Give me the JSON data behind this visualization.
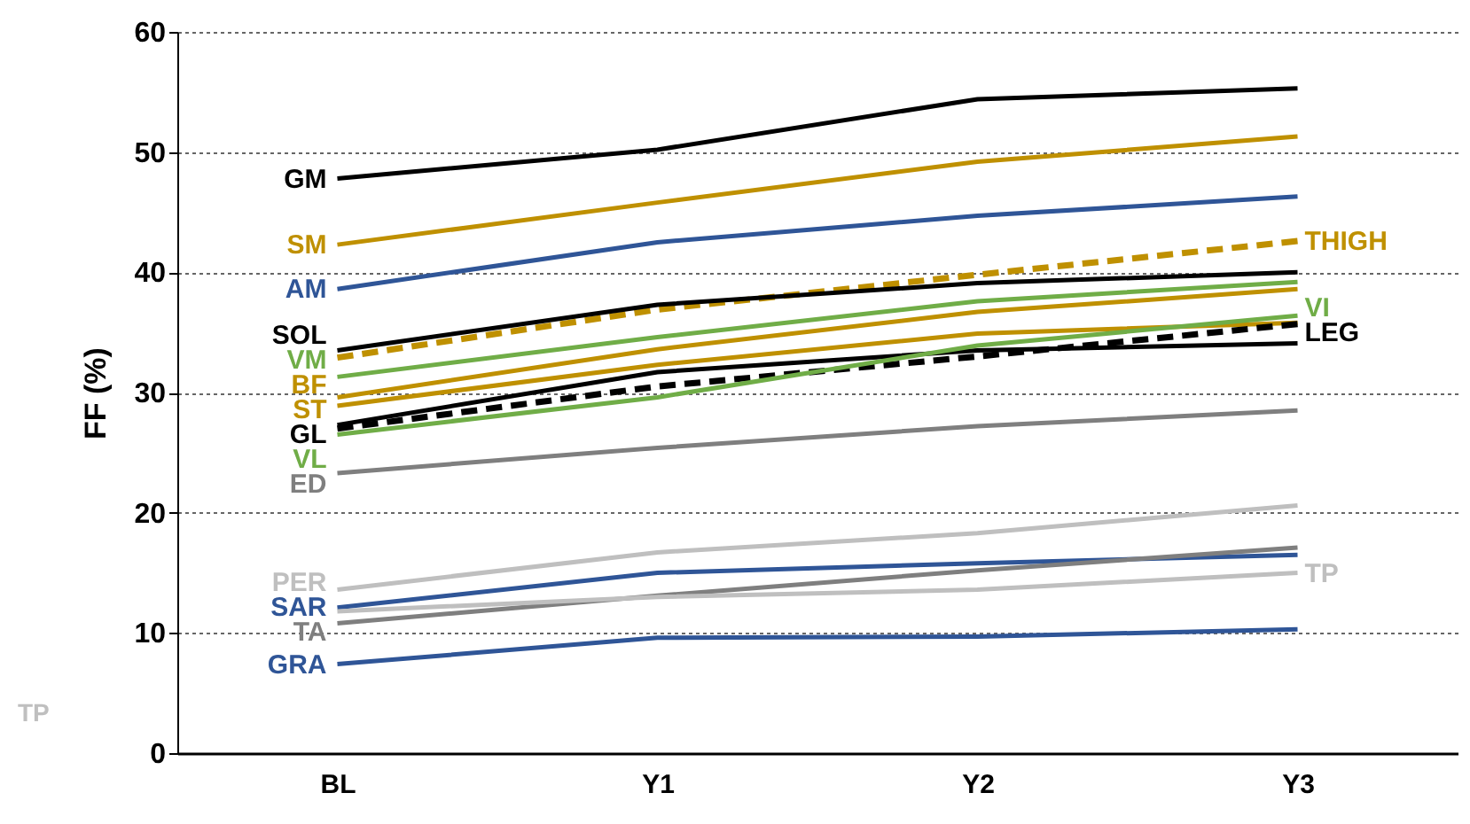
{
  "chart_data": {
    "type": "line",
    "ylabel": "FF (%)",
    "categories": [
      "BL",
      "Y1",
      "Y2",
      "Y3"
    ],
    "series": [
      {
        "name": "GM",
        "color": "#000000",
        "values": [
          47.8,
          50.2,
          54.4,
          55.3
        ]
      },
      {
        "name": "SM",
        "color": "#bf9000",
        "values": [
          42.3,
          45.8,
          49.2,
          51.3
        ]
      },
      {
        "name": "AM",
        "color": "#2f5597",
        "values": [
          38.6,
          42.5,
          44.7,
          46.3
        ]
      },
      {
        "color": "#bf9000",
        "line_style": "dashed",
        "values": [
          32.9,
          36.9,
          39.8,
          42.6
        ]
      },
      {
        "name": "SOL",
        "color": "#000000",
        "values": [
          33.5,
          37.3,
          39.1,
          40.0
        ]
      },
      {
        "name": "VM",
        "color": "#70ad47",
        "values": [
          31.3,
          34.6,
          37.6,
          39.2
        ]
      },
      {
        "name": "BF",
        "color": "#bf9000",
        "values": [
          29.6,
          33.6,
          36.7,
          38.6
        ]
      },
      {
        "name": "ST",
        "color": "#bf9000",
        "values": [
          28.9,
          32.3,
          34.9,
          35.8
        ]
      },
      {
        "name": "GL",
        "color": "#000000",
        "values": [
          27.3,
          31.7,
          33.5,
          34.1
        ]
      },
      {
        "color": "#000000",
        "line_style": "dashed",
        "values": [
          27.0,
          30.5,
          33.0,
          35.7
        ]
      },
      {
        "name": "VL",
        "color": "#70ad47",
        "values": [
          26.5,
          29.6,
          33.9,
          36.4
        ]
      },
      {
        "name": "ED",
        "color": "#7f7f7f",
        "values": [
          23.3,
          25.4,
          27.2,
          28.5
        ]
      },
      {
        "name": "PER",
        "color": "#bfbfbf",
        "values": [
          13.6,
          16.7,
          18.3,
          20.6
        ]
      },
      {
        "name": "SAR",
        "color": "#2f5597",
        "values": [
          12.1,
          15.0,
          15.8,
          16.5
        ]
      },
      {
        "name": "TA",
        "color": "#7f7f7f",
        "values": [
          10.8,
          13.1,
          15.2,
          17.1
        ]
      },
      {
        "color": "#bfbfbf",
        "values": [
          11.8,
          13.0,
          13.6,
          15.0
        ]
      },
      {
        "name": "GRA",
        "color": "#2f5597",
        "values": [
          7.4,
          9.6,
          9.7,
          10.3
        ]
      }
    ],
    "annotations": [
      {
        "text": "THIGH",
        "x": "Y3",
        "y": 42.6
      },
      {
        "text": "VI",
        "x": "Y3",
        "y": 36.4
      },
      {
        "text": "LEG",
        "x": "Y3",
        "y": 35.7
      },
      {
        "text": "TP",
        "x": "Y3",
        "y": 15.0
      },
      "TP"
    ],
    "ylim": [
      0,
      60
    ],
    "yticks": [
      0,
      10,
      20,
      30,
      40,
      50,
      60
    ],
    "grid": "y",
    "line_style": "solid"
  }
}
